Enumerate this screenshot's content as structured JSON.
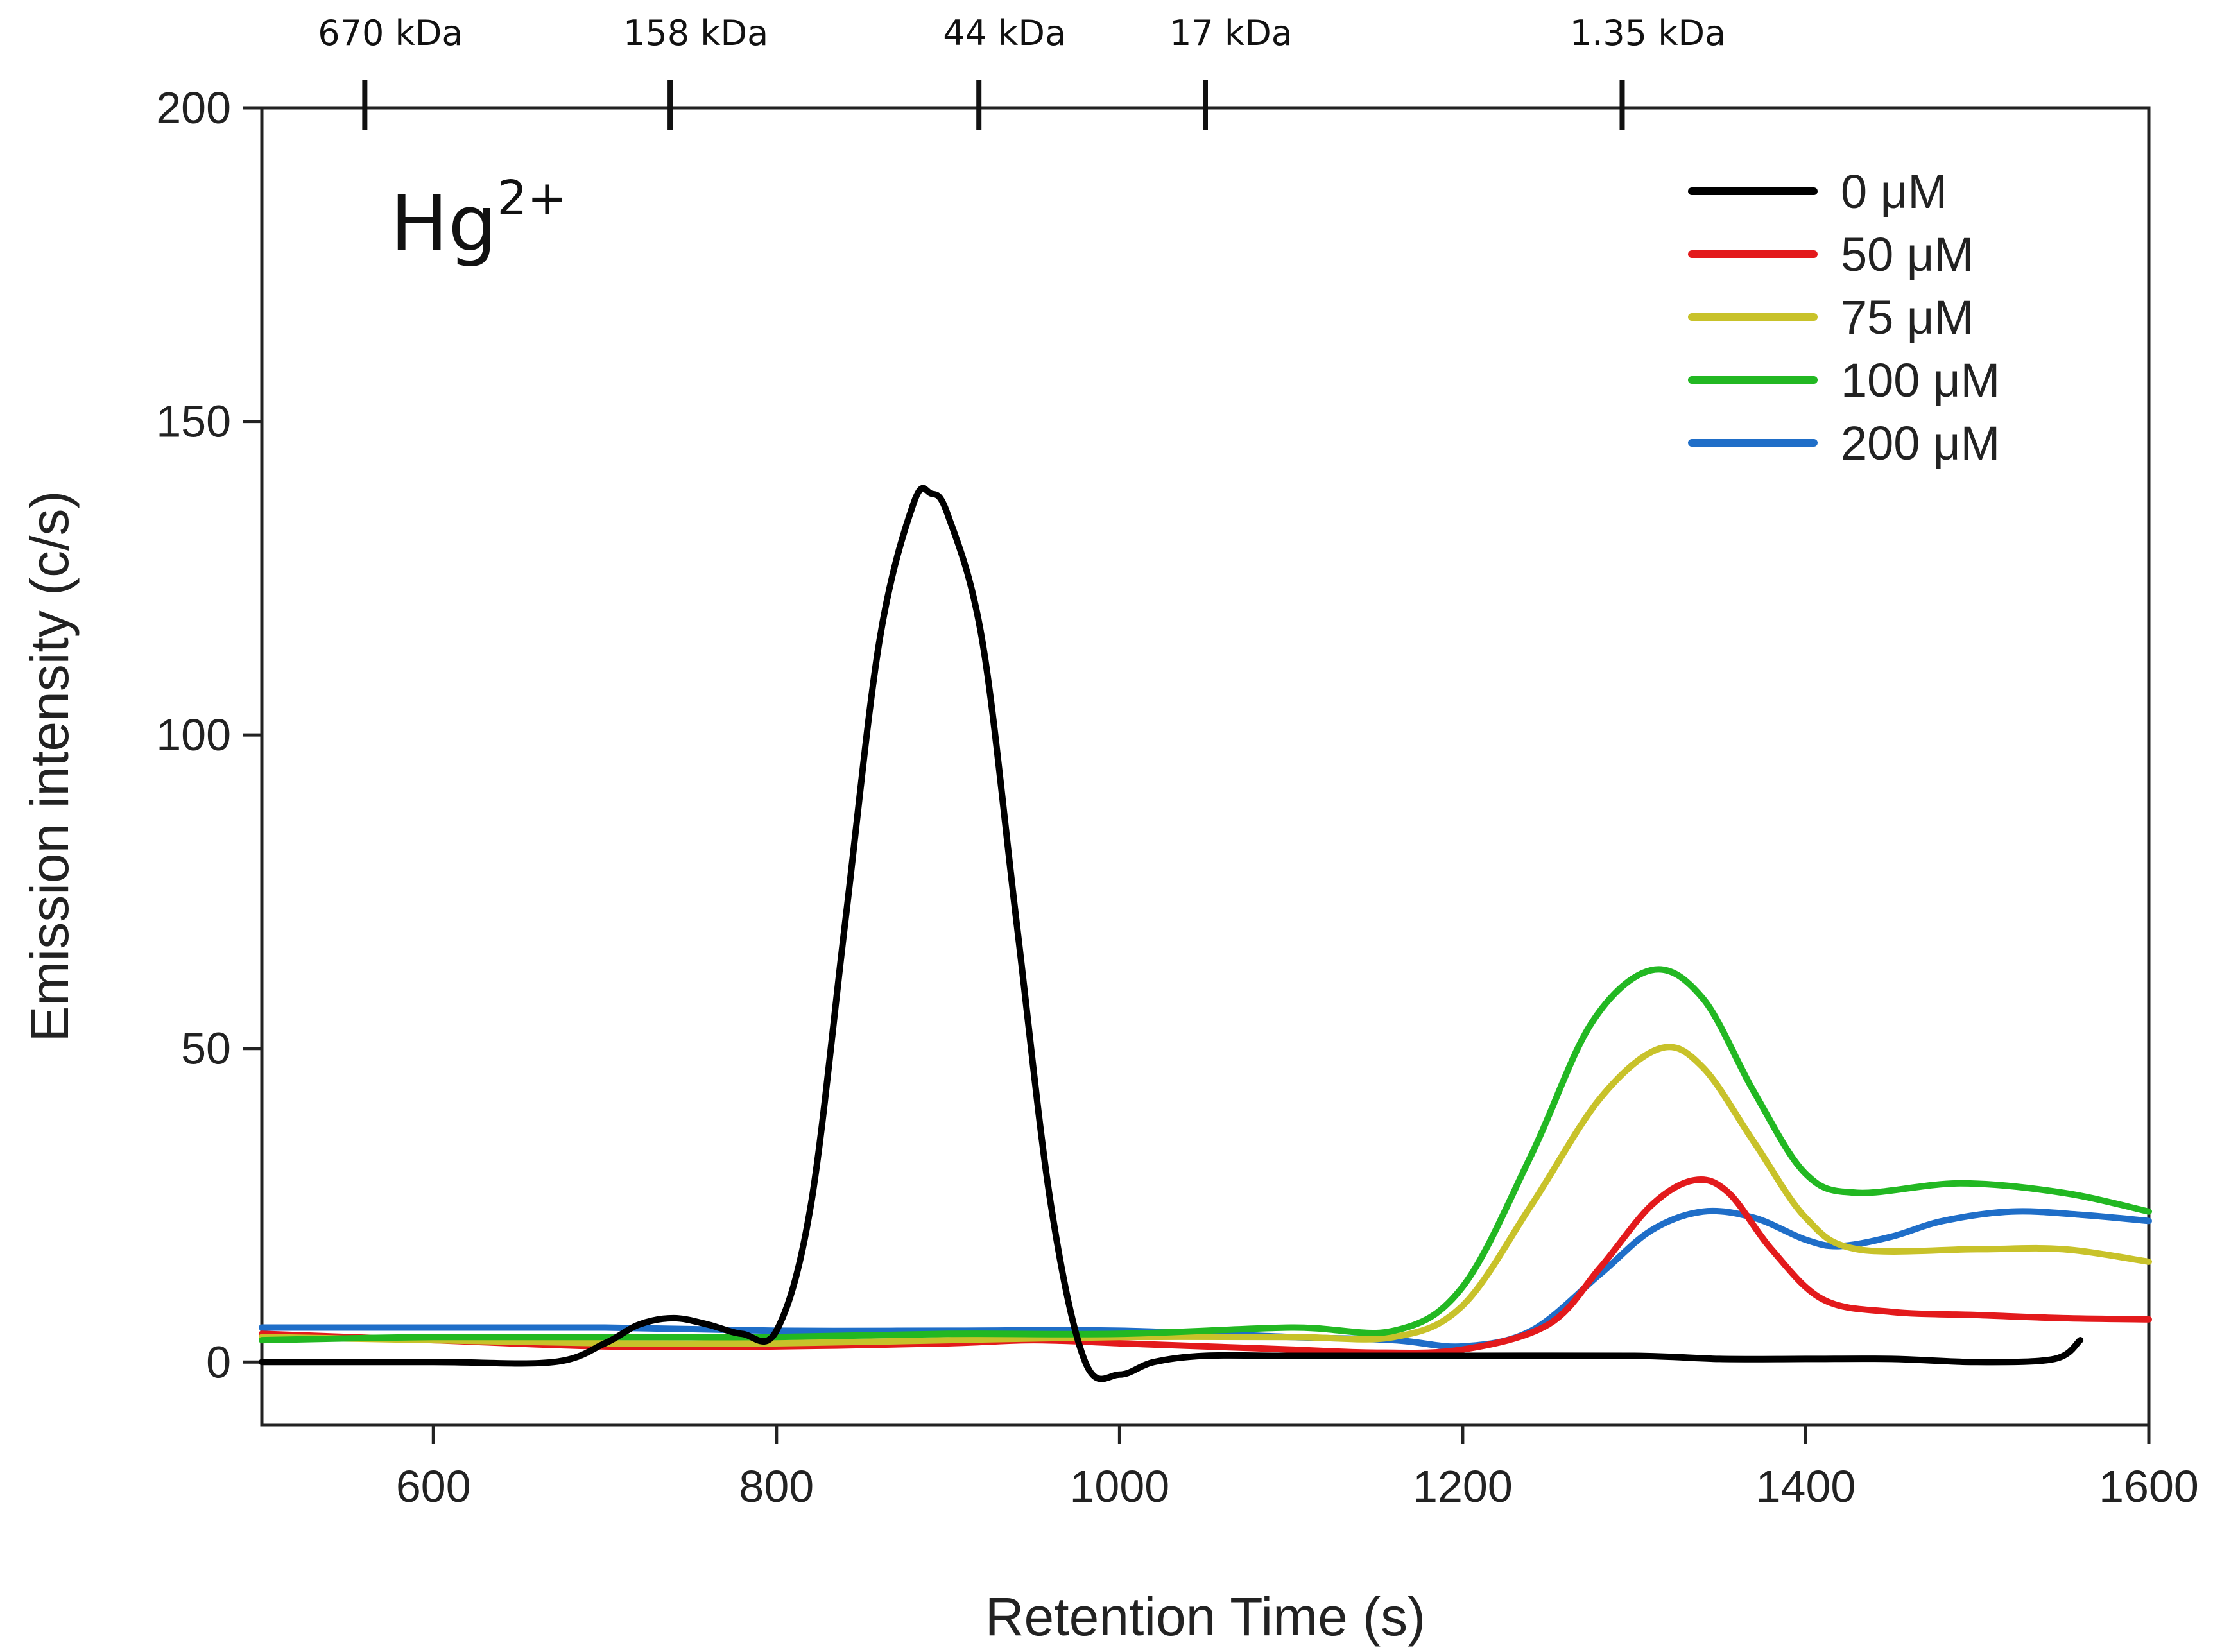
{
  "chart_data": {
    "type": "line",
    "title": "",
    "annotation": {
      "base": "Hg",
      "superscript": "2+"
    },
    "xlabel": "Retention Time (s)",
    "ylabel": "Emission intensity (c/s)",
    "xlim": [
      500,
      1600
    ],
    "ylim": [
      -10,
      200
    ],
    "x_ticks": [
      600,
      800,
      1000,
      1200,
      1400,
      1600
    ],
    "y_ticks": [
      0,
      50,
      100,
      150,
      200
    ],
    "mw_markers": [
      {
        "label": "670 kDa",
        "x": 560
      },
      {
        "label": "158 kDa",
        "x": 738
      },
      {
        "label": "44 kDa",
        "x": 918
      },
      {
        "label": "17 kDa",
        "x": 1050
      },
      {
        "label": "1.35 kDa",
        "x": 1293
      }
    ],
    "legend_position": "top-right",
    "series": [
      {
        "name": "0 μM",
        "color": "#000000",
        "points": [
          [
            500,
            0
          ],
          [
            600,
            0
          ],
          [
            670,
            0
          ],
          [
            700,
            3
          ],
          [
            720,
            6
          ],
          [
            740,
            7
          ],
          [
            760,
            6
          ],
          [
            780,
            4.5
          ],
          [
            800,
            5
          ],
          [
            820,
            25
          ],
          [
            840,
            70
          ],
          [
            860,
            115
          ],
          [
            880,
            137
          ],
          [
            890,
            138.5
          ],
          [
            900,
            135
          ],
          [
            920,
            115
          ],
          [
            940,
            70
          ],
          [
            960,
            25
          ],
          [
            980,
            0
          ],
          [
            1000,
            -2
          ],
          [
            1020,
            0
          ],
          [
            1050,
            1
          ],
          [
            1100,
            1
          ],
          [
            1200,
            1
          ],
          [
            1300,
            1
          ],
          [
            1350,
            0.5
          ],
          [
            1400,
            0.5
          ],
          [
            1450,
            0.5
          ],
          [
            1500,
            0
          ],
          [
            1545,
            0.5
          ],
          [
            1560,
            3.5
          ]
        ]
      },
      {
        "name": "50 μM",
        "color": "#e31a1c",
        "points": [
          [
            500,
            4.5
          ],
          [
            600,
            3.5
          ],
          [
            700,
            2.5
          ],
          [
            800,
            2.5
          ],
          [
            900,
            3
          ],
          [
            950,
            3.5
          ],
          [
            1000,
            3
          ],
          [
            1050,
            2.5
          ],
          [
            1100,
            2
          ],
          [
            1150,
            1.5
          ],
          [
            1200,
            2
          ],
          [
            1250,
            6
          ],
          [
            1280,
            15
          ],
          [
            1310,
            25
          ],
          [
            1335,
            29
          ],
          [
            1355,
            27
          ],
          [
            1380,
            18
          ],
          [
            1410,
            10
          ],
          [
            1450,
            8
          ],
          [
            1500,
            7.5
          ],
          [
            1550,
            7
          ],
          [
            1600,
            6.8
          ]
        ]
      },
      {
        "name": "75 μM",
        "color": "#c8c22a",
        "points": [
          [
            500,
            4
          ],
          [
            600,
            3.5
          ],
          [
            700,
            3
          ],
          [
            800,
            3
          ],
          [
            900,
            3.5
          ],
          [
            1000,
            4
          ],
          [
            1100,
            4
          ],
          [
            1160,
            4
          ],
          [
            1200,
            9
          ],
          [
            1240,
            25
          ],
          [
            1280,
            42
          ],
          [
            1315,
            50
          ],
          [
            1340,
            47
          ],
          [
            1370,
            35
          ],
          [
            1400,
            23
          ],
          [
            1430,
            18
          ],
          [
            1500,
            18
          ],
          [
            1550,
            18
          ],
          [
            1600,
            16
          ]
        ]
      },
      {
        "name": "100 μM",
        "color": "#22b822",
        "points": [
          [
            500,
            3.5
          ],
          [
            600,
            4
          ],
          [
            700,
            4
          ],
          [
            800,
            4
          ],
          [
            900,
            4.5
          ],
          [
            1000,
            4.5
          ],
          [
            1100,
            5.5
          ],
          [
            1160,
            5
          ],
          [
            1200,
            12
          ],
          [
            1240,
            33
          ],
          [
            1275,
            54
          ],
          [
            1310,
            62.5
          ],
          [
            1340,
            58
          ],
          [
            1370,
            43
          ],
          [
            1400,
            30
          ],
          [
            1430,
            27
          ],
          [
            1490,
            28.5
          ],
          [
            1550,
            27
          ],
          [
            1600,
            24
          ]
        ]
      },
      {
        "name": "200 μM",
        "color": "#1f6ec8",
        "points": [
          [
            500,
            5.5
          ],
          [
            600,
            5.5
          ],
          [
            700,
            5.5
          ],
          [
            800,
            5
          ],
          [
            900,
            5
          ],
          [
            1000,
            5
          ],
          [
            1100,
            4
          ],
          [
            1160,
            3.5
          ],
          [
            1200,
            2.5
          ],
          [
            1240,
            5
          ],
          [
            1280,
            14
          ],
          [
            1310,
            21
          ],
          [
            1340,
            24
          ],
          [
            1370,
            23
          ],
          [
            1400,
            19.5
          ],
          [
            1420,
            18.5
          ],
          [
            1450,
            20
          ],
          [
            1480,
            22.5
          ],
          [
            1520,
            24
          ],
          [
            1560,
            23.5
          ],
          [
            1600,
            22.5
          ]
        ]
      }
    ]
  }
}
